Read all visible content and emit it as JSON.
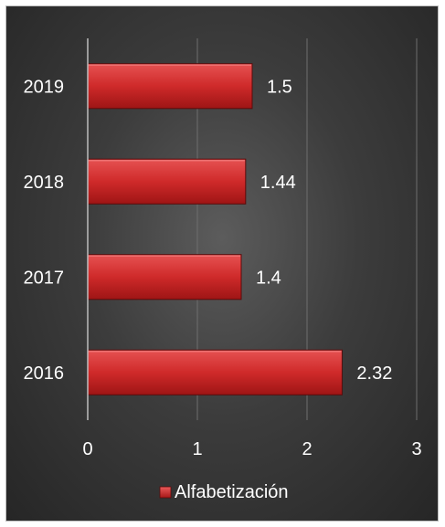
{
  "chart_data": {
    "type": "bar",
    "orientation": "horizontal",
    "categories": [
      "2016",
      "2017",
      "2018",
      "2019"
    ],
    "series": [
      {
        "name": "Alfabetización",
        "values": [
          2.32,
          1.4,
          1.44,
          1.5
        ],
        "color": "#d42a2a"
      }
    ],
    "data_labels": [
      "2.32",
      "1.4",
      "1.44",
      "1.5"
    ],
    "xlim": [
      0,
      3
    ],
    "x_ticks": [
      "0",
      "1",
      "2",
      "3"
    ],
    "grid": "vertical",
    "legend_position": "bottom",
    "background": "#3a3a3a"
  }
}
